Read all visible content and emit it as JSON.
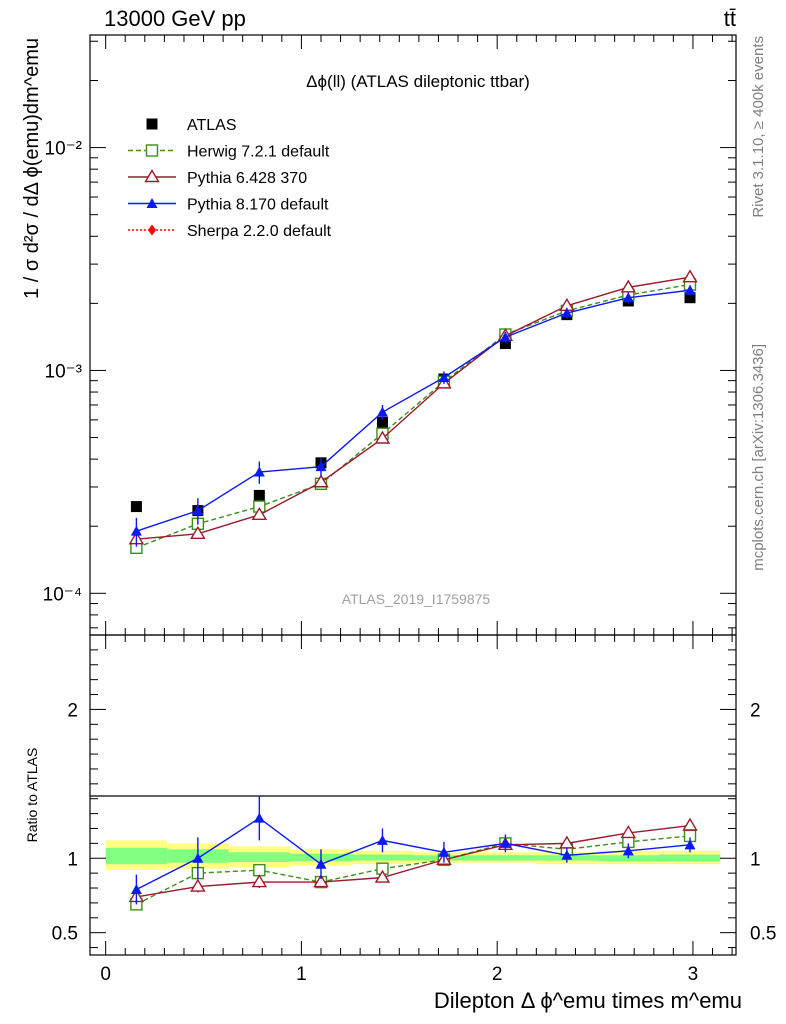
{
  "header": {
    "left": "13000 GeV pp",
    "right": "tt̄"
  },
  "side_labels": {
    "rivet": "Rivet 3.1.10, ≥ 400k events",
    "mcplots": "mcplots.cern.ch [arXiv:1306.3436]"
  },
  "chart_data": [
    {
      "type": "scatter",
      "title": "Δϕ(ll) (ATLAS dileptonic ttbar)",
      "watermark": "ATLAS_2019_I1759875",
      "ylabel": "1 / σ  d²σ / dΔ ϕ(emu)dm^emu",
      "yscale": "log",
      "ylim": [
        6.5e-05,
        0.032
      ],
      "xlim": [
        -0.08,
        3.22
      ],
      "y_ticks": [
        {
          "value": 0.01,
          "label": "10⁻²"
        },
        {
          "value": 0.001,
          "label": "10⁻³"
        },
        {
          "value": 0.0001,
          "label": "10⁻⁴"
        }
      ],
      "legend": "top-left",
      "x": [
        0.157,
        0.471,
        0.785,
        1.1,
        1.414,
        1.728,
        2.042,
        2.356,
        2.67,
        2.985
      ],
      "series": [
        {
          "name": "ATLAS",
          "color": "#000000",
          "marker": "square-filled",
          "line": "none",
          "values": [
            0.000245,
            0.000235,
            0.000275,
            0.000385,
            0.000585,
            0.000915,
            0.00132,
            0.00178,
            0.00205,
            0.00212
          ]
        },
        {
          "name": "Herwig 7.2.1 default",
          "color": "#3d8f19",
          "marker": "square-open",
          "line": "dashed",
          "values": [
            0.00016,
            0.000205,
            0.000245,
            0.00031,
            0.00052,
            0.00089,
            0.00145,
            0.00185,
            0.00218,
            0.00243
          ],
          "errors": [
            8e-06,
            1e-05,
            1e-05,
            1e-05,
            2e-05,
            2e-05,
            4e-05,
            5e-05,
            6e-05,
            6e-05
          ]
        },
        {
          "name": "Pythia 6.428 370",
          "color": "#9b1b2b",
          "marker": "triangle-open",
          "line": "solid",
          "values": [
            0.000175,
            0.000185,
            0.000225,
            0.000315,
            0.000495,
            0.000875,
            0.00143,
            0.00195,
            0.00236,
            0.00262
          ],
          "errors": [
            8e-06,
            8e-06,
            1e-05,
            1e-05,
            2e-05,
            2e-05,
            4e-05,
            5e-05,
            6e-05,
            7e-05
          ]
        },
        {
          "name": "Pythia 8.170 default",
          "color": "#0a1bf2",
          "marker": "triangle-filled",
          "line": "solid",
          "values": [
            0.00019,
            0.000235,
            0.00035,
            0.00037,
            0.00065,
            0.00093,
            0.00141,
            0.00181,
            0.00212,
            0.00229
          ],
          "errors": [
            2.8e-05,
            3.2e-05,
            4e-05,
            3.5e-05,
            5e-05,
            6e-05,
            8e-05,
            0.0001,
            0.00012,
            0.00012
          ]
        },
        {
          "name": "Sherpa 2.2.0 default",
          "color": "#ff0000",
          "marker": "diamond-filled",
          "line": "dotted",
          "values": []
        }
      ]
    },
    {
      "type": "scatter",
      "ylabel": "Ratio to ATLAS",
      "xlabel": "Dilepton Δ ϕ^emu times m^emu",
      "ylim": [
        0.35,
        2.5
      ],
      "xlim": [
        -0.08,
        3.22
      ],
      "y_ticks": [
        {
          "value": 0.5,
          "label": "0.5"
        },
        {
          "value": 1,
          "label": "1"
        },
        {
          "value": 2,
          "label": "2"
        }
      ],
      "x_ticks": [
        {
          "value": 0,
          "label": "0"
        },
        {
          "value": 1,
          "label": "1"
        },
        {
          "value": 2,
          "label": "2"
        },
        {
          "value": 3,
          "label": "3"
        }
      ],
      "x": [
        0.157,
        0.471,
        0.785,
        1.1,
        1.414,
        1.728,
        2.042,
        2.356,
        2.67,
        2.985
      ],
      "band_edges": [
        0,
        0.314,
        0.628,
        0.942,
        1.256,
        1.57,
        1.884,
        2.198,
        2.512,
        2.826,
        3.14
      ],
      "band_outer": [
        [
          0.92,
          1.12
        ],
        [
          0.93,
          1.1
        ],
        [
          0.94,
          1.08
        ],
        [
          0.95,
          1.06
        ],
        [
          0.96,
          1.05
        ],
        [
          0.97,
          1.04
        ],
        [
          0.97,
          1.04
        ],
        [
          0.96,
          1.04
        ],
        [
          0.96,
          1.05
        ],
        [
          0.96,
          1.05
        ]
      ],
      "band_inner": [
        [
          0.96,
          1.07
        ],
        [
          0.97,
          1.06
        ],
        [
          0.975,
          1.04
        ],
        [
          0.98,
          1.03
        ],
        [
          0.985,
          1.025
        ],
        [
          0.985,
          1.02
        ],
        [
          0.985,
          1.02
        ],
        [
          0.985,
          1.02
        ],
        [
          0.98,
          1.02
        ],
        [
          0.98,
          1.025
        ]
      ],
      "band_colors": {
        "outer": "#ffff80",
        "inner": "#80ff80"
      },
      "series": [
        {
          "name": "Herwig 7.2.1 default",
          "color": "#3d8f19",
          "marker": "square-open",
          "line": "dashed",
          "values": [
            0.69,
            0.9,
            0.92,
            0.84,
            0.93,
            0.99,
            1.1,
            1.06,
            1.11,
            1.15
          ],
          "errors": [
            0.04,
            0.04,
            0.04,
            0.03,
            0.03,
            0.02,
            0.02,
            0.02,
            0.02,
            0.02
          ]
        },
        {
          "name": "Pythia 6.428 370",
          "color": "#9b1b2b",
          "marker": "triangle-open",
          "line": "solid",
          "values": [
            0.74,
            0.81,
            0.84,
            0.84,
            0.87,
            0.99,
            1.09,
            1.1,
            1.17,
            1.22
          ],
          "errors": [
            0.04,
            0.04,
            0.04,
            0.03,
            0.03,
            0.02,
            0.02,
            0.02,
            0.02,
            0.02
          ]
        },
        {
          "name": "Pythia 8.170 default",
          "color": "#0a1bf2",
          "marker": "triangle-filled",
          "line": "solid",
          "values": [
            0.79,
            1.0,
            1.27,
            0.96,
            1.12,
            1.04,
            1.1,
            1.02,
            1.05,
            1.09
          ],
          "errors": [
            0.1,
            0.14,
            0.15,
            0.1,
            0.08,
            0.07,
            0.06,
            0.05,
            0.05,
            0.05
          ]
        }
      ]
    }
  ]
}
